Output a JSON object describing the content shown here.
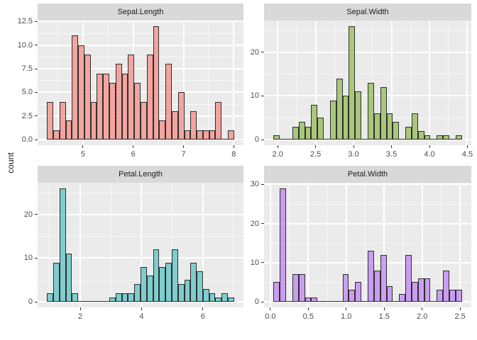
{
  "figure": {
    "y_axis_title": "count",
    "colors": {
      "background": "#FFFFFF",
      "panel_bg": "#EBEBEB",
      "strip_bg": "#D9D9D9",
      "grid_major": "#FFFFFF",
      "grid_minor": "rgba(255,255,255,0.65)",
      "bar_border": "#2E2E2E",
      "tick_mark": "#333333",
      "axis_text": "#4D4D4D",
      "strip_text": "#1A1A1A"
    }
  },
  "chart_data": [
    {
      "type": "bar",
      "subtype": "histogram",
      "title": "Sepal.Length",
      "fill": "rgba(244,140,132,0.75)",
      "fill_flat": "#F2A49E",
      "bin_start": 4.282759,
      "bin_width": 0.124138,
      "counts": [
        4,
        1,
        4,
        2,
        11,
        10,
        9,
        4,
        7,
        7,
        6,
        8,
        7,
        9,
        6,
        4,
        9,
        12,
        2,
        8,
        3,
        5,
        1,
        3,
        1,
        1,
        1,
        4,
        0,
        1
      ],
      "x_domain": [
        4.096552,
        8.193103
      ],
      "y_domain": [
        -0.6,
        12.6
      ],
      "x_ticks": [
        5,
        6,
        7,
        8
      ],
      "x_tick_labels": [
        "5",
        "6",
        "7",
        "8"
      ],
      "x_minor": [
        4.5,
        5.5,
        6.5,
        7.5
      ],
      "y_ticks": [
        0,
        2.5,
        5,
        7.5,
        10,
        12.5
      ],
      "y_tick_labels": [
        "0.0",
        "2.5",
        "5.0",
        "7.5",
        "10.0",
        "12.5"
      ],
      "y_minor": [
        1.25,
        3.75,
        6.25,
        8.75,
        11.25
      ],
      "xlabel": "",
      "ylabel": "count",
      "grid": true,
      "legend": false
    },
    {
      "type": "bar",
      "subtype": "histogram",
      "title": "Sepal.Width",
      "fill": "rgba(146,187,84,0.75)",
      "fill_flat": "#A8C76A",
      "bin_start": 1.944828,
      "bin_width": 0.082759,
      "counts": [
        1,
        0,
        0,
        3,
        4,
        3,
        8,
        5,
        0,
        9,
        14,
        10,
        26,
        11,
        0,
        13,
        6,
        12,
        6,
        4,
        0,
        3,
        6,
        2,
        1,
        0,
        1,
        1,
        0,
        1
      ],
      "x_domain": [
        1.82069,
        4.551724
      ],
      "y_domain": [
        -1.3,
        27.3
      ],
      "x_ticks": [
        2.0,
        2.5,
        3.0,
        3.5,
        4.0,
        4.5
      ],
      "x_tick_labels": [
        "2.0",
        "2.5",
        "3.0",
        "3.5",
        "4.0",
        "4.5"
      ],
      "x_minor": [
        2.25,
        2.75,
        3.25,
        3.75,
        4.25
      ],
      "y_ticks": [
        0,
        10,
        20
      ],
      "y_tick_labels": [
        "0",
        "10",
        "20"
      ],
      "y_minor": [
        5,
        15,
        25
      ],
      "xlabel": "",
      "ylabel": "count",
      "grid": true,
      "legend": false
    },
    {
      "type": "bar",
      "subtype": "histogram",
      "title": "Petal.Length",
      "fill": "rgba(91,195,195,0.75)",
      "fill_flat": "#7FCDCD",
      "bin_start": 0.915517,
      "bin_width": 0.203448,
      "counts": [
        2,
        9,
        26,
        11,
        2,
        0,
        0,
        0,
        0,
        0,
        1,
        2,
        2,
        2,
        4,
        8,
        6,
        12,
        8,
        9,
        12,
        4,
        5,
        9,
        7,
        3,
        2,
        1,
        2,
        1
      ],
      "x_domain": [
        0.610345,
        7.324138
      ],
      "y_domain": [
        -1.3,
        27.3
      ],
      "x_ticks": [
        2,
        4,
        6
      ],
      "x_tick_labels": [
        "2",
        "4",
        "6"
      ],
      "x_minor": [
        1,
        3,
        5,
        7
      ],
      "y_ticks": [
        0,
        10,
        20
      ],
      "y_tick_labels": [
        "0",
        "10",
        "20"
      ],
      "y_minor": [
        5,
        15,
        25
      ],
      "xlabel": "",
      "ylabel": "count",
      "grid": true,
      "legend": false
    },
    {
      "type": "bar",
      "subtype": "histogram",
      "title": "Petal.Width",
      "fill": "rgba(191,131,243,0.75)",
      "fill_flat": "#CA9DF1",
      "bin_start": 0.041379,
      "bin_width": 0.082759,
      "counts": [
        5,
        29,
        0,
        7,
        7,
        1,
        1,
        0,
        0,
        0,
        0,
        7,
        3,
        5,
        0,
        13,
        8,
        12,
        4,
        0,
        2,
        12,
        5,
        6,
        6,
        0,
        3,
        8,
        3,
        3
      ],
      "x_domain": [
        -0.082759,
        2.648276
      ],
      "y_domain": [
        -1.45,
        30.45
      ],
      "x_ticks": [
        0.0,
        0.5,
        1.0,
        1.5,
        2.0,
        2.5
      ],
      "x_tick_labels": [
        "0.0",
        "0.5",
        "1.0",
        "1.5",
        "2.0",
        "2.5"
      ],
      "x_minor": [
        0.25,
        0.75,
        1.25,
        1.75,
        2.25
      ],
      "y_ticks": [
        0,
        10,
        20,
        30
      ],
      "y_tick_labels": [
        "0",
        "10",
        "20",
        "30"
      ],
      "y_minor": [
        5,
        15,
        25
      ],
      "xlabel": "",
      "ylabel": "count",
      "grid": true,
      "legend": false
    }
  ]
}
